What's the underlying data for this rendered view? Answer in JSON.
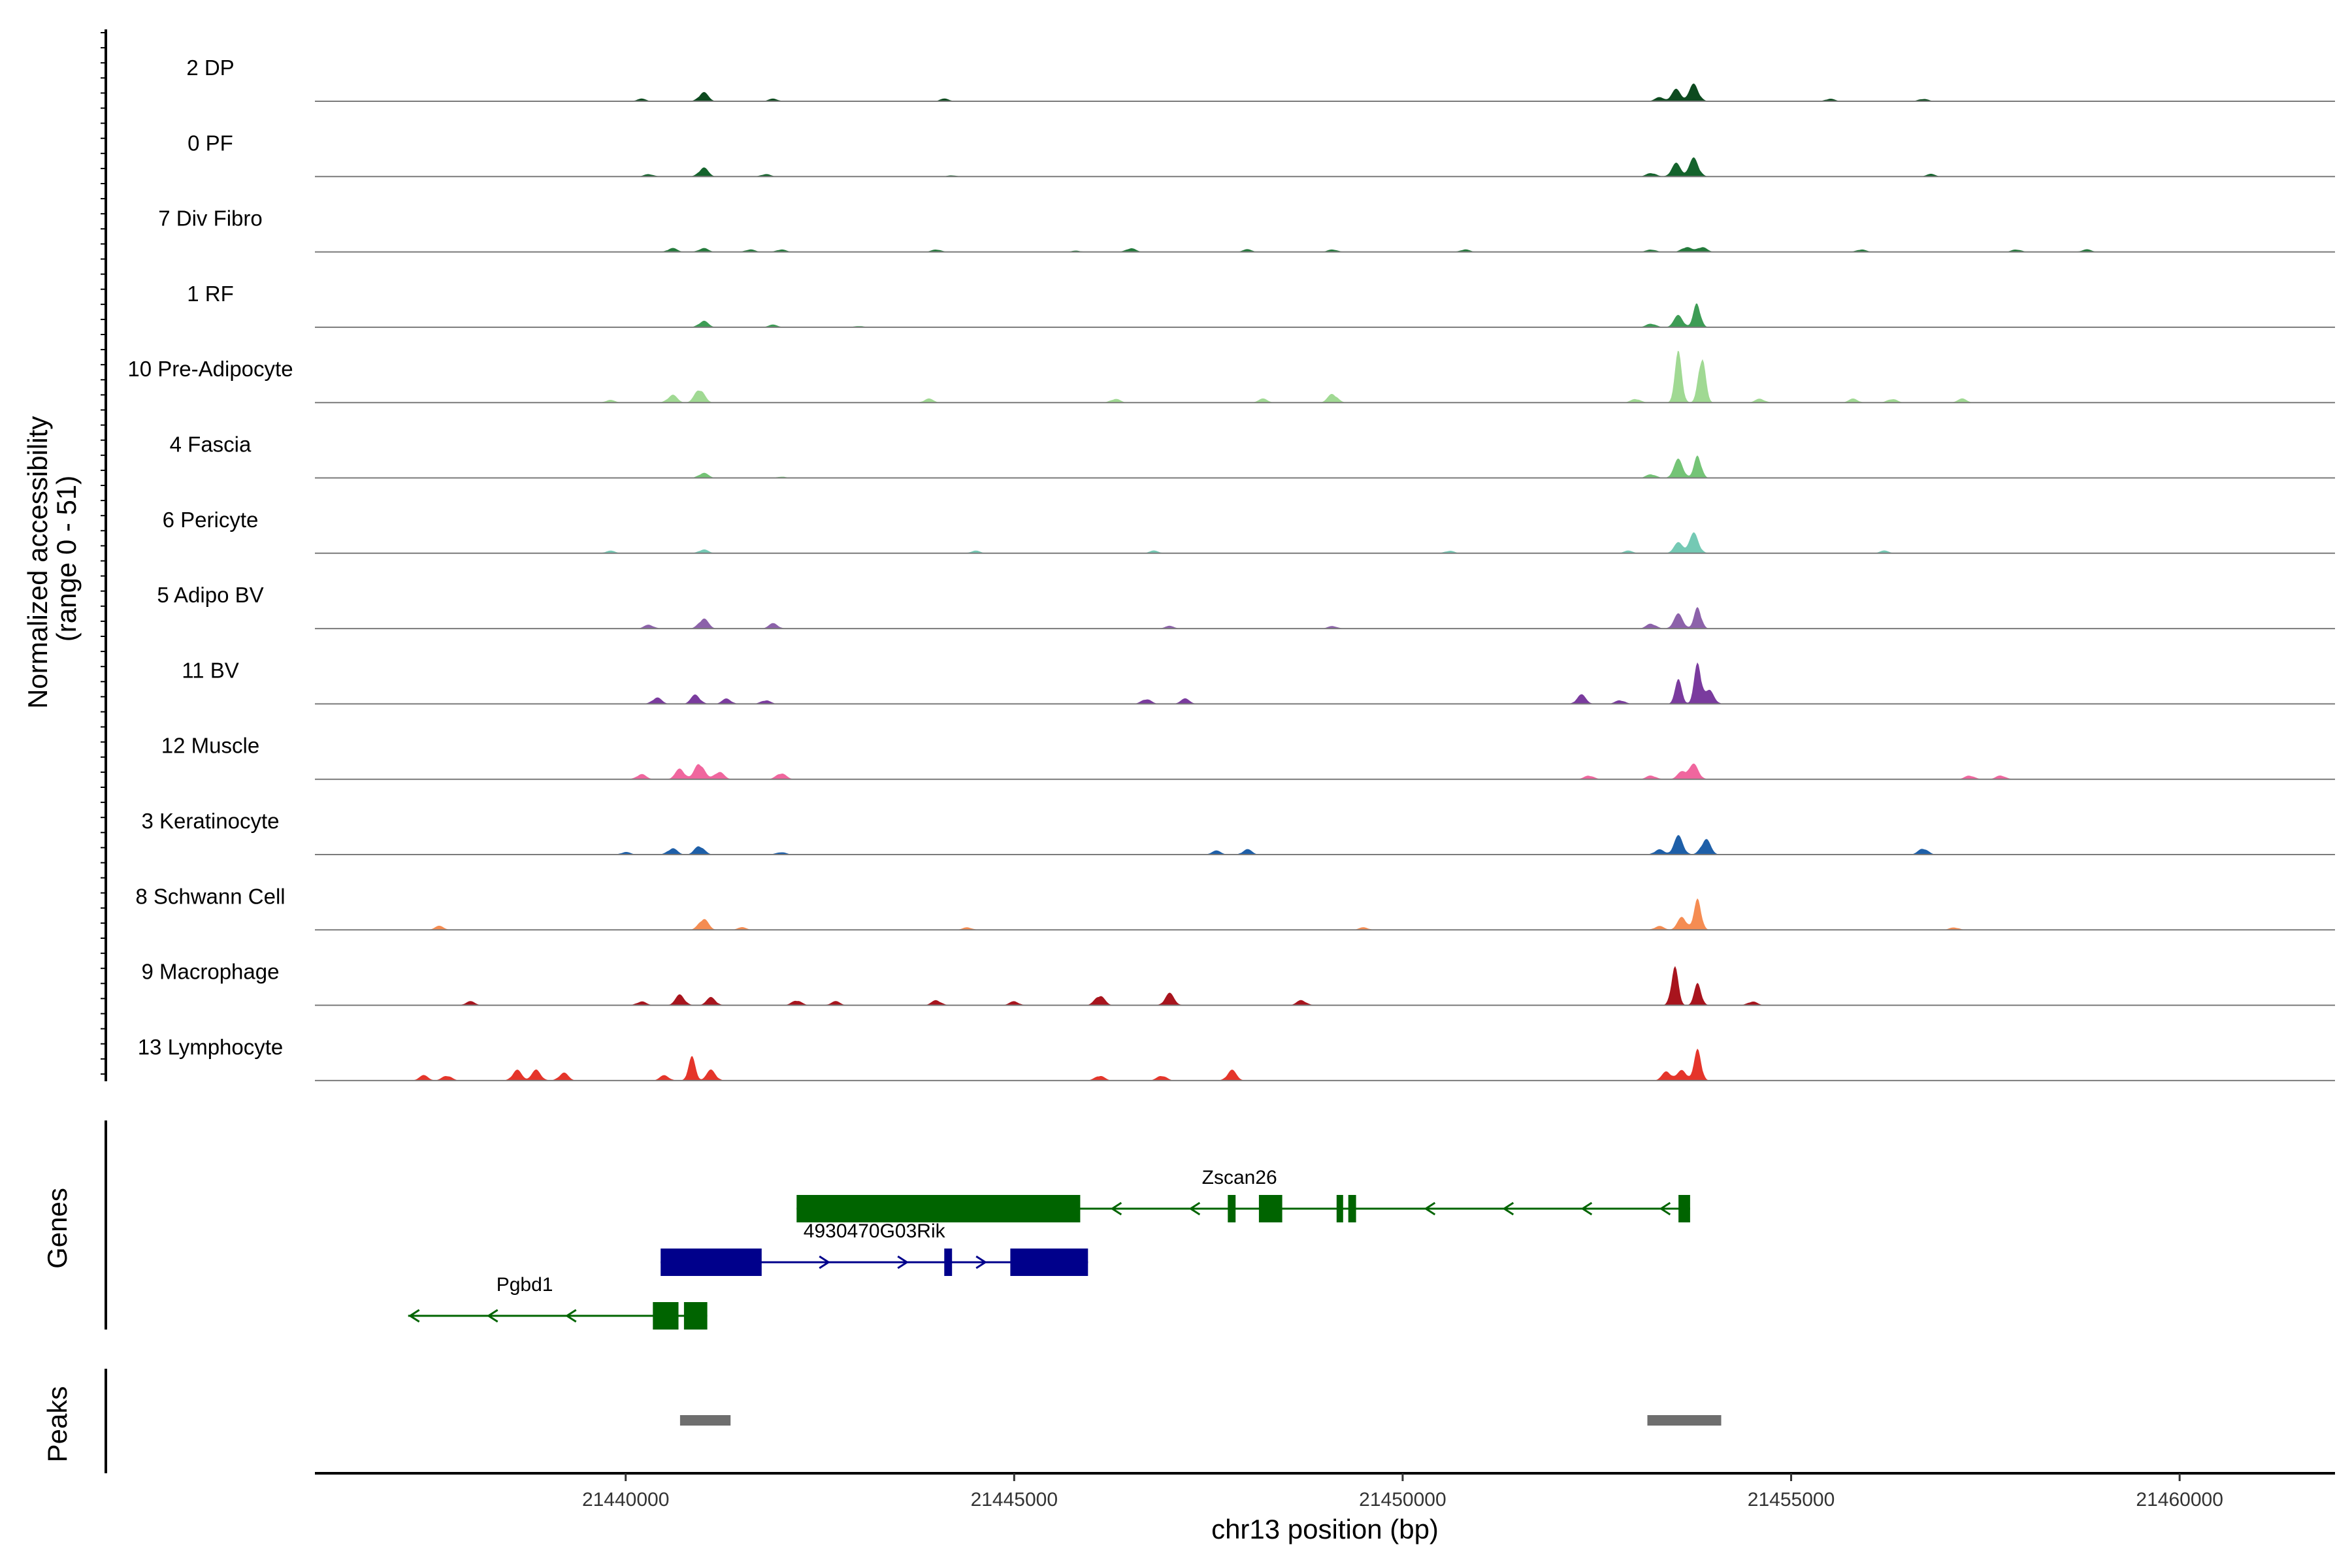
{
  "chart_data": {
    "type": "area",
    "title": "",
    "y_axis_title_line1": "Normalized accessibility",
    "y_axis_title_line2": "(range 0 - 51)",
    "y_range": [
      0,
      51
    ],
    "xlabel": "chr13 position (bp)",
    "xlim": [
      21436000,
      21462000
    ],
    "x_ticks": [
      21440000,
      21445000,
      21450000,
      21455000,
      21460000
    ],
    "x_tick_labels": [
      "21440000",
      "21445000",
      "21450000",
      "21455000",
      "21460000"
    ],
    "tracks": [
      {
        "name": "2 DP",
        "color": "#0d4a1f",
        "peaks": [
          [
            21441000,
            7
          ],
          [
            21453520,
            9
          ],
          [
            21453750,
            13
          ],
          [
            21453300,
            3
          ],
          [
            21440200,
            2
          ],
          [
            21441900,
            2
          ],
          [
            21444100,
            2
          ],
          [
            21455500,
            2
          ],
          [
            21456700,
            2
          ]
        ]
      },
      {
        "name": "0 PF",
        "color": "#14632c",
        "peaks": [
          [
            21441000,
            7
          ],
          [
            21453520,
            10
          ],
          [
            21453750,
            14
          ],
          [
            21453200,
            3
          ],
          [
            21440300,
            2
          ],
          [
            21441800,
            2
          ],
          [
            21444200,
            1
          ],
          [
            21456800,
            2
          ]
        ]
      },
      {
        "name": "7 Div Fibro",
        "color": "#237a3b",
        "peaks": [
          [
            21440600,
            3
          ],
          [
            21441000,
            3
          ],
          [
            21441600,
            2
          ],
          [
            21442000,
            2
          ],
          [
            21444000,
            2
          ],
          [
            21445800,
            1
          ],
          [
            21446500,
            3
          ],
          [
            21448000,
            2
          ],
          [
            21449100,
            2
          ],
          [
            21450800,
            2
          ],
          [
            21453200,
            2
          ],
          [
            21453650,
            4
          ],
          [
            21453850,
            4
          ],
          [
            21455900,
            2
          ],
          [
            21457900,
            2
          ],
          [
            21458800,
            2
          ]
        ]
      },
      {
        "name": "1 RF",
        "color": "#3d9c55",
        "peaks": [
          [
            21441000,
            5
          ],
          [
            21441900,
            2
          ],
          [
            21453200,
            3
          ],
          [
            21453550,
            9
          ],
          [
            21453790,
            19
          ],
          [
            21443000,
            1
          ]
        ]
      },
      {
        "name": "10 Pre-Adipocyte",
        "color": "#a0d993",
        "peaks": [
          [
            21440600,
            6
          ],
          [
            21440950,
            11
          ],
          [
            21439800,
            2
          ],
          [
            21443900,
            3
          ],
          [
            21446300,
            3
          ],
          [
            21448200,
            3
          ],
          [
            21449100,
            7
          ],
          [
            21453550,
            38
          ],
          [
            21453850,
            38
          ],
          [
            21453000,
            3
          ],
          [
            21454600,
            3
          ],
          [
            21455800,
            3
          ],
          [
            21456300,
            3
          ],
          [
            21457200,
            3
          ]
        ]
      },
      {
        "name": "4 Fascia",
        "color": "#74c476",
        "peaks": [
          [
            21441000,
            4
          ],
          [
            21453550,
            14
          ],
          [
            21453800,
            18
          ],
          [
            21453200,
            3
          ],
          [
            21442000,
            1
          ]
        ]
      },
      {
        "name": "6 Pericyte",
        "color": "#74c9b4",
        "peaks": [
          [
            21441000,
            3
          ],
          [
            21439800,
            2
          ],
          [
            21444500,
            2
          ],
          [
            21446800,
            2
          ],
          [
            21450600,
            2
          ],
          [
            21453550,
            8
          ],
          [
            21453750,
            15
          ],
          [
            21452900,
            2
          ],
          [
            21456200,
            2
          ]
        ]
      },
      {
        "name": "5 Adipo BV",
        "color": "#8c62aa",
        "peaks": [
          [
            21441000,
            8
          ],
          [
            21440300,
            3
          ],
          [
            21441900,
            4
          ],
          [
            21453200,
            4
          ],
          [
            21453550,
            11
          ],
          [
            21453800,
            17
          ],
          [
            21447000,
            2
          ],
          [
            21449100,
            2
          ]
        ]
      },
      {
        "name": "11 BV",
        "color": "#7a3b9e",
        "peaks": [
          [
            21440400,
            5
          ],
          [
            21440900,
            7
          ],
          [
            21441300,
            4
          ],
          [
            21441800,
            3
          ],
          [
            21446700,
            4
          ],
          [
            21447200,
            4
          ],
          [
            21452300,
            7
          ],
          [
            21452800,
            3
          ],
          [
            21453550,
            18
          ],
          [
            21453800,
            32
          ],
          [
            21453950,
            10
          ]
        ]
      },
      {
        "name": "12 Muscle",
        "color": "#f0669e",
        "peaks": [
          [
            21440200,
            4
          ],
          [
            21440700,
            8
          ],
          [
            21440950,
            13
          ],
          [
            21441200,
            6
          ],
          [
            21442000,
            5
          ],
          [
            21452400,
            3
          ],
          [
            21453200,
            3
          ],
          [
            21453600,
            6
          ],
          [
            21453750,
            11
          ],
          [
            21457300,
            3
          ],
          [
            21457700,
            3
          ]
        ]
      },
      {
        "name": "3 Keratinocyte",
        "color": "#1e5fa8",
        "peaks": [
          [
            21440600,
            5
          ],
          [
            21440950,
            7
          ],
          [
            21440000,
            2
          ],
          [
            21442000,
            2
          ],
          [
            21447600,
            3
          ],
          [
            21448000,
            4
          ],
          [
            21453300,
            4
          ],
          [
            21453550,
            14
          ],
          [
            21453900,
            12
          ],
          [
            21456700,
            5
          ]
        ]
      },
      {
        "name": "8 Schwann Cell",
        "color": "#f58c52",
        "peaks": [
          [
            21437600,
            3
          ],
          [
            21441000,
            9
          ],
          [
            21441500,
            2
          ],
          [
            21444400,
            2
          ],
          [
            21449500,
            2
          ],
          [
            21453300,
            3
          ],
          [
            21453600,
            10
          ],
          [
            21453800,
            24
          ],
          [
            21457100,
            2
          ]
        ]
      },
      {
        "name": "9 Macrophage",
        "color": "#a8141d",
        "peaks": [
          [
            21438000,
            3
          ],
          [
            21440200,
            3
          ],
          [
            21440700,
            8
          ],
          [
            21441100,
            6
          ],
          [
            21442200,
            4
          ],
          [
            21442700,
            3
          ],
          [
            21444000,
            4
          ],
          [
            21445000,
            3
          ],
          [
            21446100,
            8
          ],
          [
            21447000,
            9
          ],
          [
            21448700,
            4
          ],
          [
            21453500,
            30
          ],
          [
            21453800,
            17
          ],
          [
            21454500,
            3
          ]
        ]
      },
      {
        "name": "13 Lymphocyte",
        "color": "#e5352a",
        "peaks": [
          [
            21437400,
            4
          ],
          [
            21437700,
            4
          ],
          [
            21438600,
            8
          ],
          [
            21438850,
            8
          ],
          [
            21439200,
            6
          ],
          [
            21440500,
            4
          ],
          [
            21440850,
            18
          ],
          [
            21441100,
            8
          ],
          [
            21446100,
            4
          ],
          [
            21446900,
            4
          ],
          [
            21447800,
            8
          ],
          [
            21453400,
            7
          ],
          [
            21453800,
            24
          ],
          [
            21453600,
            8
          ]
        ]
      }
    ],
    "genes_track_label": "Genes",
    "genes": [
      {
        "name": "Zscan26",
        "strand": "-",
        "color": "#006400",
        "start": 21442200,
        "end": 21453700,
        "label_pos": 21447900,
        "exons": [
          [
            21442200,
            21445850
          ],
          [
            21447750,
            21447850
          ],
          [
            21448150,
            21448450
          ],
          [
            21449150,
            21449200
          ],
          [
            21449300,
            21449400
          ],
          [
            21453550,
            21453700
          ]
        ]
      },
      {
        "name": "4930470G03Rik",
        "strand": "+",
        "color": "#00008b",
        "start": 21440450,
        "end": 21445950,
        "label_pos": 21443200,
        "exons": [
          [
            21440450,
            21441750
          ],
          [
            21444100,
            21444200
          ],
          [
            21444950,
            21445950
          ]
        ]
      },
      {
        "name": "Pgbd1",
        "strand": "-",
        "color": "#006400",
        "start": 21437200,
        "end": 21441050,
        "label_pos": 21438700,
        "exons": [
          [
            21440350,
            21440680
          ],
          [
            21440750,
            21441050
          ]
        ]
      }
    ],
    "peaks_track_label": "Peaks",
    "peak_regions": [
      [
        21440700,
        21441350
      ],
      [
        21453150,
        21454100
      ]
    ],
    "peak_color": "#6e6e6e"
  }
}
